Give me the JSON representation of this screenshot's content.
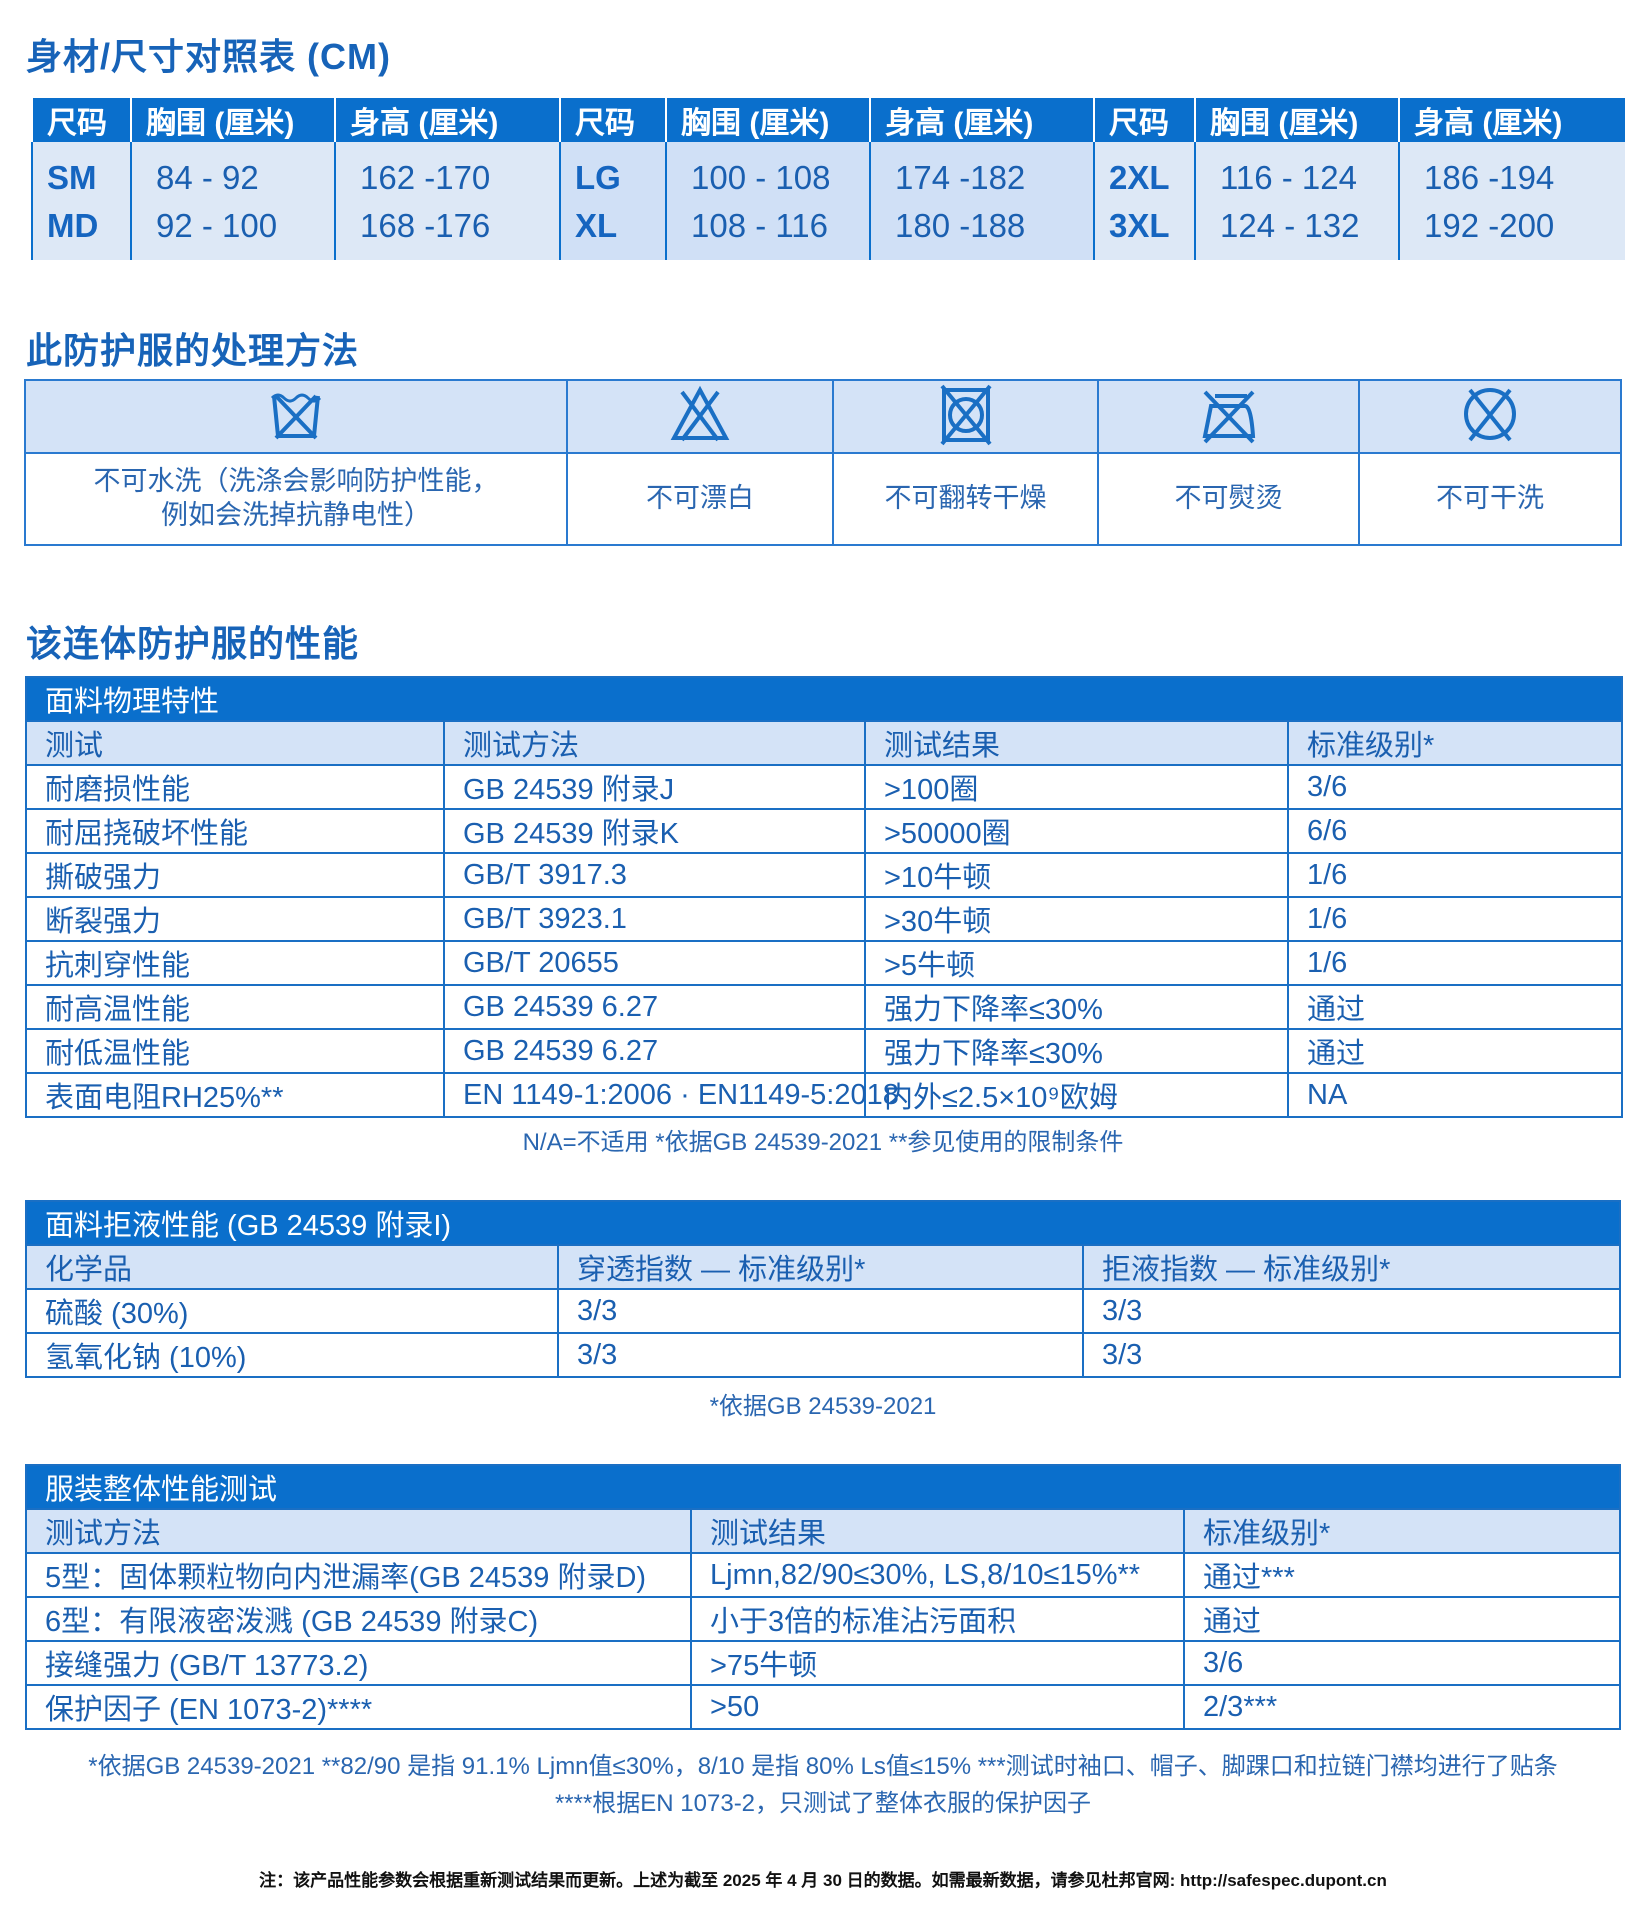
{
  "size_chart": {
    "title": "身材/尺寸对照表 (CM)",
    "headers": [
      "尺码",
      "胸围 (厘米)",
      "身高 (厘米)",
      "尺码",
      "胸围 (厘米)",
      "身高 (厘米)",
      "尺码",
      "胸围 (厘米)",
      "身高 (厘米)"
    ],
    "rows": [
      [
        "SM",
        "84 - 92",
        "162 -170",
        "LG",
        "100 - 108",
        "174 -182",
        "2XL",
        "116 - 124",
        "186 -194"
      ],
      [
        "MD",
        "92 - 100",
        "168 -176",
        "XL",
        "108 - 116",
        "180 -188",
        "3XL",
        "124 - 132",
        "192 -200"
      ]
    ]
  },
  "care": {
    "title": "此防护服的处理方法",
    "items": [
      {
        "icon": "no-wash-icon",
        "label": "不可水洗（洗涤会影响防护性能，\n例如会洗掉抗静电性）"
      },
      {
        "icon": "no-bleach-icon",
        "label": "不可漂白"
      },
      {
        "icon": "no-tumble-dry-icon",
        "label": "不可翻转干燥"
      },
      {
        "icon": "no-iron-icon",
        "label": "不可熨烫"
      },
      {
        "icon": "no-dry-clean-icon",
        "label": "不可干洗"
      }
    ]
  },
  "performance": {
    "title": "该连体防护服的性能",
    "physical": {
      "title": "面料物理特性",
      "headers": [
        "测试",
        "测试方法",
        "测试结果",
        "标准级别*"
      ],
      "rows": [
        [
          "耐磨损性能",
          "GB 24539 附录J",
          ">100圈",
          "3/6"
        ],
        [
          "耐屈挠破坏性能",
          "GB 24539 附录K",
          ">50000圈",
          "6/6"
        ],
        [
          "撕破强力",
          "GB/T 3917.3",
          ">10牛顿",
          "1/6"
        ],
        [
          "断裂强力",
          "GB/T 3923.1",
          ">30牛顿",
          "1/6"
        ],
        [
          "抗刺穿性能",
          "GB/T 20655",
          ">5牛顿",
          "1/6"
        ],
        [
          "耐高温性能",
          "GB 24539 6.27",
          "强力下降率≤30%",
          "通过"
        ],
        [
          "耐低温性能",
          "GB 24539 6.27",
          "强力下降率≤30%",
          "通过"
        ],
        [
          "表面电阻RH25%**",
          "EN 1149-1:2006 · EN1149-5:2018",
          "内外≤2.5×10⁹欧姆",
          "NA"
        ]
      ],
      "note": "N/A=不适用  *依据GB 24539-2021  **参见使用的限制条件"
    },
    "liquid": {
      "title": "面料拒液性能 (GB 24539 附录I)",
      "headers": [
        "化学品",
        "穿透指数 — 标准级别*",
        "拒液指数 — 标准级别*"
      ],
      "rows": [
        [
          "硫酸 (30%)",
          "3/3",
          "3/3"
        ],
        [
          "氢氧化钠 (10%)",
          "3/3",
          "3/3"
        ]
      ],
      "note": "*依据GB 24539-2021"
    },
    "garment": {
      "title": "服装整体性能测试",
      "headers": [
        "测试方法",
        "测试结果",
        "标准级别*"
      ],
      "rows": [
        [
          "5型：固体颗粒物向内泄漏率(GB 24539 附录D)",
          "Ljmn,82/90≤30%, LS,8/10≤15%**",
          "通过***"
        ],
        [
          "6型：有限液密泼溅 (GB 24539 附录C)",
          "小于3倍的标准沾污面积",
          "通过"
        ],
        [
          "接缝强力 (GB/T 13773.2)",
          ">75牛顿",
          "3/6"
        ],
        [
          "保护因子 (EN 1073-2)****",
          ">50",
          "2/3***"
        ]
      ],
      "note1": "*依据GB 24539-2021  **82/90 是指 91.1% Ljmn值≤30%，8/10 是指 80% Ls值≤15%  ***测试时袖口、帽子、脚踝口和拉链门襟均进行了贴条",
      "note2": "****根据EN 1073-2，只测试了整体衣服的保护因子"
    }
  },
  "footer_note": "注：该产品性能参数会根据重新测试结果而更新。上述为截至 2025 年 4 月 30 日的数据。如需最新数据，请参见杜邦官网: http://safespec.dupont.cn",
  "colors": {
    "header_blue": "#0a6fcc",
    "light_blue": "#d4e3f7",
    "text_blue": "#1a5fb0"
  }
}
